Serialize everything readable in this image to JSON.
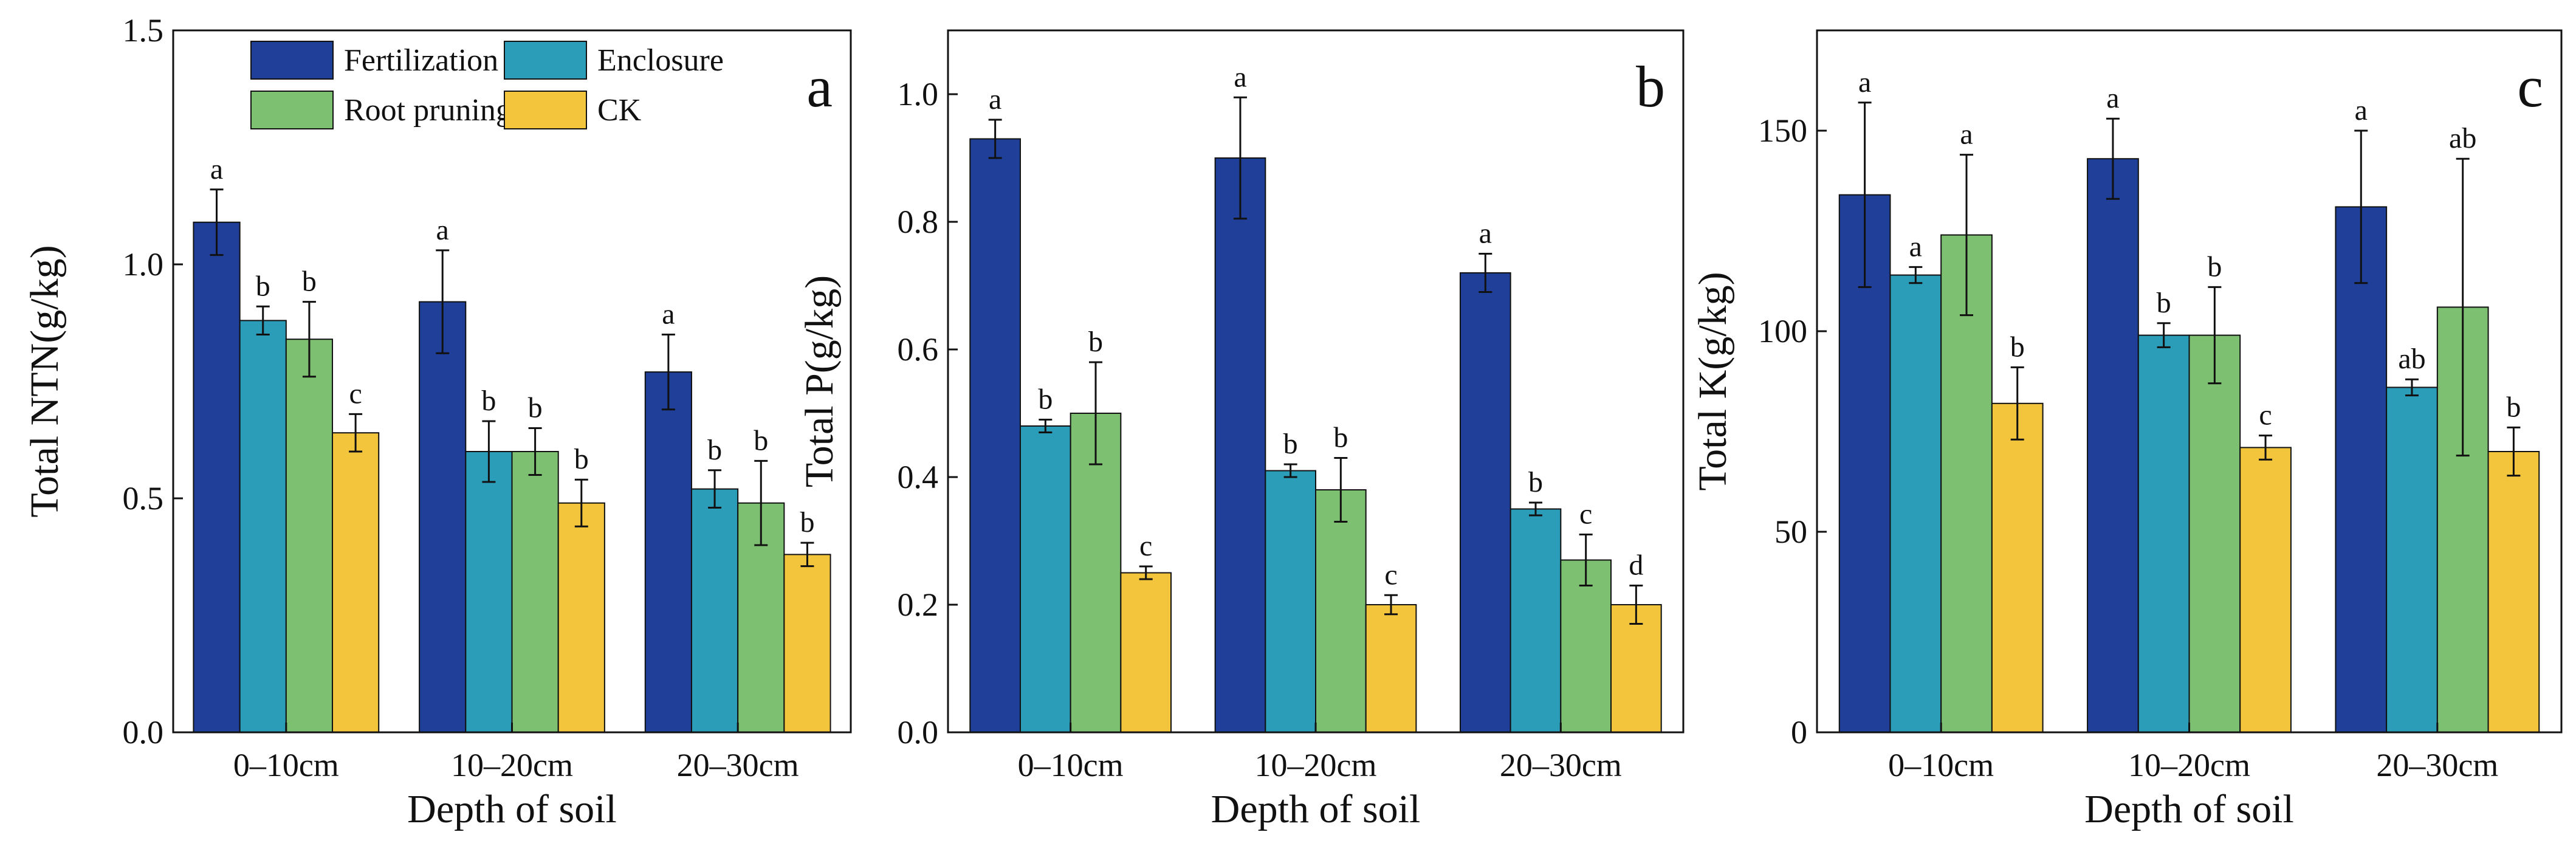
{
  "colors": {
    "Fertilization": "#1F3F99",
    "Enclosure": "#2B9DB9",
    "Root pruning": "#7DC071",
    "CK": "#F2C53D",
    "axis": "#111111"
  },
  "legend": {
    "entries": [
      "Fertilization",
      "Enclosure",
      "Root pruning",
      "CK"
    ]
  },
  "chart_data": [
    {
      "type": "bar",
      "panel_letter": "a",
      "title": "",
      "xlabel": "Depth of soil",
      "ylabel": "Total NTN(g/kg)",
      "ylim": [
        0,
        1.5
      ],
      "yticks": [
        0.0,
        0.5,
        1.0,
        1.5
      ],
      "ytick_labels": [
        "0.0",
        "0.5",
        "1.0",
        "1.5"
      ],
      "categories": [
        "0–10cm",
        "10–20cm",
        "20–30cm"
      ],
      "legend_location": "upper-left",
      "series": [
        {
          "name": "Fertilization",
          "values": [
            1.09,
            0.92,
            0.77
          ],
          "errors": [
            0.07,
            0.11,
            0.08
          ],
          "labels": [
            "a",
            "a",
            "a"
          ]
        },
        {
          "name": "Enclosure",
          "values": [
            0.88,
            0.6,
            0.52
          ],
          "errors": [
            0.03,
            0.065,
            0.04
          ],
          "labels": [
            "b",
            "b",
            "b"
          ]
        },
        {
          "name": "Root pruning",
          "values": [
            0.84,
            0.6,
            0.49
          ],
          "errors": [
            0.08,
            0.05,
            0.09
          ],
          "labels": [
            "b",
            "b",
            "b"
          ]
        },
        {
          "name": "CK",
          "values": [
            0.64,
            0.49,
            0.38
          ],
          "errors": [
            0.04,
            0.05,
            0.025
          ],
          "labels": [
            "c",
            "b",
            "b"
          ]
        }
      ]
    },
    {
      "type": "bar",
      "panel_letter": "b",
      "title": "",
      "xlabel": "Depth of soil",
      "ylabel": "Total P(g/kg)",
      "ylim": [
        0,
        1.1
      ],
      "yticks": [
        0.0,
        0.2,
        0.4,
        0.6,
        0.8,
        1.0
      ],
      "ytick_labels": [
        "0.0",
        "0.2",
        "0.4",
        "0.6",
        "0.8",
        "1.0"
      ],
      "categories": [
        "0–10cm",
        "10–20cm",
        "20–30cm"
      ],
      "series": [
        {
          "name": "Fertilization",
          "values": [
            0.93,
            0.9,
            0.72
          ],
          "errors": [
            0.03,
            0.095,
            0.03
          ],
          "labels": [
            "a",
            "a",
            "a"
          ]
        },
        {
          "name": "Enclosure",
          "values": [
            0.48,
            0.41,
            0.35
          ],
          "errors": [
            0.01,
            0.01,
            0.01
          ],
          "labels": [
            "b",
            "b",
            "b"
          ]
        },
        {
          "name": "Root pruning",
          "values": [
            0.5,
            0.38,
            0.27
          ],
          "errors": [
            0.08,
            0.05,
            0.04
          ],
          "labels": [
            "b",
            "b",
            "c"
          ]
        },
        {
          "name": "CK",
          "values": [
            0.25,
            0.2,
            0.2
          ],
          "errors": [
            0.01,
            0.015,
            0.03
          ],
          "labels": [
            "c",
            "c",
            "d"
          ]
        }
      ]
    },
    {
      "type": "bar",
      "panel_letter": "c",
      "title": "",
      "xlabel": "Depth of soil",
      "ylabel": "Total K(g/kg)",
      "ylim": [
        0,
        175
      ],
      "yticks": [
        0,
        50,
        100,
        150
      ],
      "ytick_labels": [
        "0",
        "50",
        "100",
        "150"
      ],
      "categories": [
        "0–10cm",
        "10–20cm",
        "20–30cm"
      ],
      "series": [
        {
          "name": "Fertilization",
          "values": [
            134,
            143,
            131
          ],
          "errors": [
            23,
            10,
            19
          ],
          "labels": [
            "a",
            "a",
            "a"
          ]
        },
        {
          "name": "Enclosure",
          "values": [
            114,
            99,
            86
          ],
          "errors": [
            2,
            3,
            2
          ],
          "labels": [
            "a",
            "b",
            "ab"
          ]
        },
        {
          "name": "Root pruning",
          "values": [
            124,
            99,
            106
          ],
          "errors": [
            20,
            12,
            37
          ],
          "labels": [
            "a",
            "b",
            "ab"
          ]
        },
        {
          "name": "CK",
          "values": [
            82,
            71,
            70
          ],
          "errors": [
            9,
            3,
            6
          ],
          "labels": [
            "b",
            "c",
            "b"
          ]
        }
      ]
    }
  ]
}
